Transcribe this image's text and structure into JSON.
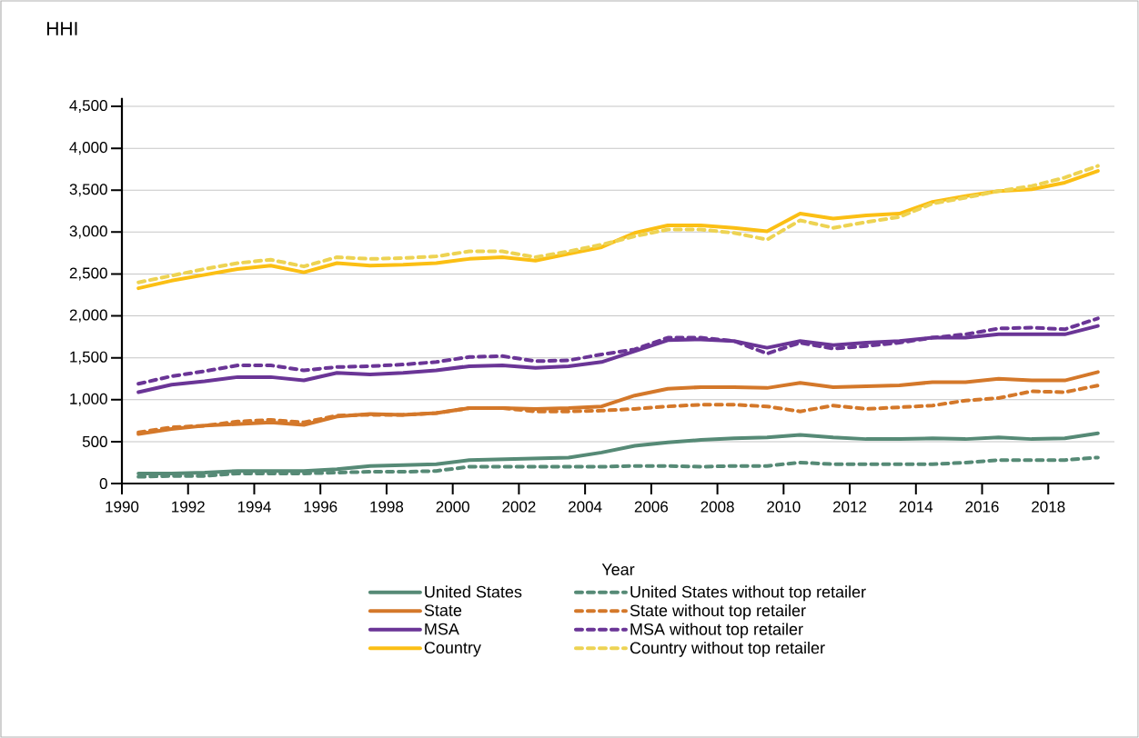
{
  "chart_data": {
    "type": "line",
    "ylabel": "HHI",
    "xlabel": "Year",
    "x": [
      1990.5,
      1991.5,
      1992.5,
      1993.5,
      1994.5,
      1995.5,
      1996.5,
      1997.5,
      1998.5,
      1999.5,
      2000.5,
      2001.5,
      2002.5,
      2003.5,
      2004.5,
      2005.5,
      2006.5,
      2007.5,
      2008.5,
      2009.5,
      2010.5,
      2011.5,
      2012.5,
      2013.5,
      2014.5,
      2015.5,
      2016.5,
      2017.5,
      2018.5,
      2019.5
    ],
    "series": [
      {
        "name": "United States",
        "color": "#568a76",
        "line_style": "solid",
        "values": [
          120,
          120,
          130,
          150,
          150,
          150,
          170,
          210,
          220,
          230,
          280,
          290,
          300,
          310,
          370,
          450,
          490,
          520,
          540,
          550,
          580,
          550,
          530,
          530,
          540,
          530,
          550,
          530,
          540,
          600
        ]
      },
      {
        "name": "United States without top retailer",
        "color": "#568a76",
        "line_style": "dashed",
        "values": [
          80,
          90,
          90,
          120,
          120,
          120,
          130,
          140,
          140,
          150,
          200,
          200,
          200,
          200,
          200,
          210,
          210,
          200,
          210,
          210,
          250,
          230,
          230,
          230,
          230,
          250,
          280,
          280,
          280,
          310
        ]
      },
      {
        "name": "State",
        "color": "#d4782a",
        "line_style": "solid",
        "values": [
          590,
          650,
          690,
          710,
          730,
          700,
          800,
          830,
          820,
          840,
          900,
          900,
          890,
          900,
          920,
          1050,
          1130,
          1150,
          1150,
          1140,
          1200,
          1150,
          1160,
          1170,
          1210,
          1210,
          1250,
          1230,
          1230,
          1330
        ]
      },
      {
        "name": "State without top retailer",
        "color": "#d4782a",
        "line_style": "dashed",
        "values": [
          610,
          670,
          690,
          740,
          760,
          730,
          810,
          820,
          820,
          840,
          900,
          900,
          860,
          860,
          870,
          890,
          920,
          940,
          940,
          920,
          860,
          930,
          890,
          910,
          930,
          990,
          1020,
          1100,
          1090,
          1170
        ]
      },
      {
        "name": "MSA",
        "color": "#6a3596",
        "line_style": "solid",
        "values": [
          1090,
          1180,
          1220,
          1270,
          1270,
          1230,
          1320,
          1300,
          1320,
          1350,
          1400,
          1410,
          1380,
          1400,
          1450,
          1580,
          1710,
          1720,
          1700,
          1620,
          1700,
          1650,
          1680,
          1700,
          1740,
          1740,
          1780,
          1780,
          1780,
          1880
        ]
      },
      {
        "name": "MSA without top retailer",
        "color": "#6a3596",
        "line_style": "dashed",
        "values": [
          1190,
          1280,
          1340,
          1410,
          1410,
          1350,
          1390,
          1400,
          1420,
          1450,
          1510,
          1520,
          1460,
          1470,
          1540,
          1600,
          1740,
          1740,
          1700,
          1550,
          1680,
          1610,
          1640,
          1680,
          1740,
          1780,
          1850,
          1860,
          1840,
          1970
        ]
      },
      {
        "name": "Country",
        "color": "#fbbf14",
        "line_style": "solid",
        "values": [
          2330,
          2420,
          2490,
          2560,
          2600,
          2520,
          2630,
          2600,
          2610,
          2630,
          2680,
          2700,
          2660,
          2740,
          2820,
          2990,
          3080,
          3080,
          3050,
          3010,
          3220,
          3160,
          3200,
          3220,
          3360,
          3430,
          3490,
          3510,
          3590,
          3730
        ]
      },
      {
        "name": "Country without top retailer",
        "color": "#edd353",
        "line_style": "dashed",
        "values": [
          2400,
          2480,
          2560,
          2630,
          2670,
          2590,
          2700,
          2680,
          2690,
          2710,
          2770,
          2770,
          2700,
          2770,
          2850,
          2950,
          3030,
          3030,
          2990,
          2910,
          3140,
          3050,
          3120,
          3180,
          3340,
          3410,
          3490,
          3550,
          3650,
          3790
        ]
      }
    ],
    "xlim": [
      1990,
      2020
    ],
    "xticks": [
      1990,
      1992,
      1994,
      1996,
      1998,
      2000,
      2002,
      2004,
      2006,
      2008,
      2010,
      2012,
      2014,
      2016,
      2018
    ],
    "ylim": [
      0,
      4600
    ],
    "yticks": [
      0,
      500,
      {
        "value": 1000,
        "label": "1,000"
      },
      {
        "value": 1500,
        "label": "1,500"
      },
      {
        "value": 2000,
        "label": "2,000"
      },
      {
        "value": 2500,
        "label": "2,500"
      },
      {
        "value": 3000,
        "label": "3,000"
      },
      {
        "value": 3500,
        "label": "3,500"
      },
      {
        "value": 4000,
        "label": "4,000"
      },
      {
        "value": 4500,
        "label": "4,500"
      }
    ],
    "grid": "y",
    "legend": "bottom",
    "marker": "none"
  }
}
